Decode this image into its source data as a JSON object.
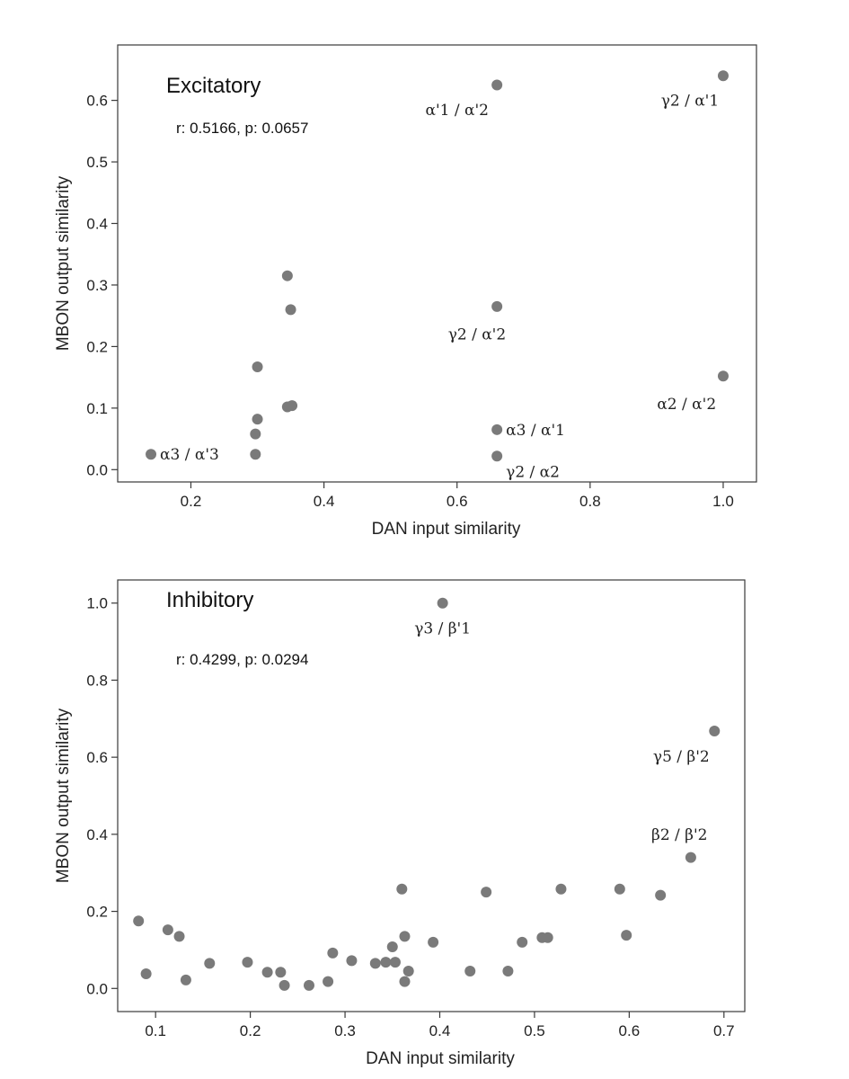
{
  "chart_data": [
    {
      "type": "scatter",
      "title": "Excitatory",
      "annotation": "r: 0.5166,  p: 0.0657",
      "xlabel": "DAN input similarity",
      "ylabel": "MBON output similarity",
      "xlim": [
        0.09,
        1.05
      ],
      "ylim": [
        -0.02,
        0.69
      ],
      "xticks": [
        0.2,
        0.4,
        0.6,
        0.8,
        1.0
      ],
      "xtick_labels": [
        "0.2",
        "0.4",
        "0.6",
        "0.8",
        "1.0"
      ],
      "yticks": [
        0.0,
        0.1,
        0.2,
        0.3,
        0.4,
        0.5,
        0.6
      ],
      "ytick_labels": [
        "0.0",
        "0.1",
        "0.2",
        "0.3",
        "0.4",
        "0.5",
        "0.6"
      ],
      "point_color": "#7a7a7a",
      "points": [
        {
          "x": 0.66,
          "y": 0.625,
          "label": "α'1 / α'2",
          "lx": -0.06,
          "ly": -0.04
        },
        {
          "x": 1.0,
          "y": 0.64,
          "label": "γ2 / α'1",
          "lx": -0.05,
          "ly": -0.04
        },
        {
          "x": 0.345,
          "y": 0.315
        },
        {
          "x": 0.35,
          "y": 0.26
        },
        {
          "x": 0.66,
          "y": 0.265,
          "label": "γ2 / α'2",
          "lx": -0.03,
          "ly": -0.045
        },
        {
          "x": 0.3,
          "y": 0.167
        },
        {
          "x": 1.0,
          "y": 0.152,
          "label": "α2 / α'2",
          "lx": -0.055,
          "ly": -0.045
        },
        {
          "x": 0.345,
          "y": 0.102
        },
        {
          "x": 0.352,
          "y": 0.104
        },
        {
          "x": 0.3,
          "y": 0.082
        },
        {
          "x": 0.66,
          "y": 0.065,
          "label": "α3 / α'1",
          "lx": 0.01,
          "ly": 0.0
        },
        {
          "x": 0.297,
          "y": 0.058
        },
        {
          "x": 0.14,
          "y": 0.025,
          "label": "α3 / α'3",
          "lx": 0.01,
          "ly": 0.0
        },
        {
          "x": 0.297,
          "y": 0.025
        },
        {
          "x": 0.66,
          "y": 0.022,
          "label": "γ2 / α2",
          "lx": 0.01,
          "ly": -0.025
        }
      ]
    },
    {
      "type": "scatter",
      "title": "Inhibitory",
      "annotation": "r: 0.4299,  p: 0.0294",
      "xlabel": "DAN input similarity",
      "ylabel": "MBON output similarity",
      "xlim": [
        0.06,
        0.722
      ],
      "ylim": [
        -0.06,
        1.06
      ],
      "xticks": [
        0.1,
        0.2,
        0.3,
        0.4,
        0.5,
        0.6,
        0.7
      ],
      "xtick_labels": [
        "0.1",
        "0.2",
        "0.3",
        "0.4",
        "0.5",
        "0.6",
        "0.7"
      ],
      "yticks": [
        0.0,
        0.2,
        0.4,
        0.6,
        0.8,
        1.0
      ],
      "ytick_labels": [
        "0.0",
        "0.2",
        "0.4",
        "0.6",
        "0.8",
        "1.0"
      ],
      "point_color": "#7a7a7a",
      "points": [
        {
          "x": 0.403,
          "y": 1.0,
          "label": "γ3 / β'1",
          "lx": 0.0,
          "ly": -0.065
        },
        {
          "x": 0.69,
          "y": 0.668,
          "label": "γ5 / β'2",
          "lx": -0.035,
          "ly": -0.065
        },
        {
          "x": 0.665,
          "y": 0.34,
          "label": "β2 / β'2",
          "lx": -0.012,
          "ly": 0.06
        },
        {
          "x": 0.082,
          "y": 0.175
        },
        {
          "x": 0.09,
          "y": 0.038
        },
        {
          "x": 0.113,
          "y": 0.152
        },
        {
          "x": 0.125,
          "y": 0.135
        },
        {
          "x": 0.132,
          "y": 0.022
        },
        {
          "x": 0.157,
          "y": 0.065
        },
        {
          "x": 0.197,
          "y": 0.068
        },
        {
          "x": 0.218,
          "y": 0.042
        },
        {
          "x": 0.232,
          "y": 0.042
        },
        {
          "x": 0.236,
          "y": 0.008
        },
        {
          "x": 0.262,
          "y": 0.008
        },
        {
          "x": 0.282,
          "y": 0.018
        },
        {
          "x": 0.287,
          "y": 0.092
        },
        {
          "x": 0.307,
          "y": 0.072
        },
        {
          "x": 0.332,
          "y": 0.065
        },
        {
          "x": 0.343,
          "y": 0.068
        },
        {
          "x": 0.35,
          "y": 0.108
        },
        {
          "x": 0.353,
          "y": 0.068
        },
        {
          "x": 0.36,
          "y": 0.258
        },
        {
          "x": 0.363,
          "y": 0.135
        },
        {
          "x": 0.363,
          "y": 0.018
        },
        {
          "x": 0.367,
          "y": 0.045
        },
        {
          "x": 0.393,
          "y": 0.12
        },
        {
          "x": 0.432,
          "y": 0.045
        },
        {
          "x": 0.449,
          "y": 0.25
        },
        {
          "x": 0.472,
          "y": 0.045
        },
        {
          "x": 0.487,
          "y": 0.12
        },
        {
          "x": 0.508,
          "y": 0.132
        },
        {
          "x": 0.514,
          "y": 0.132
        },
        {
          "x": 0.528,
          "y": 0.258
        },
        {
          "x": 0.59,
          "y": 0.258
        },
        {
          "x": 0.597,
          "y": 0.138
        },
        {
          "x": 0.633,
          "y": 0.242
        }
      ]
    }
  ]
}
